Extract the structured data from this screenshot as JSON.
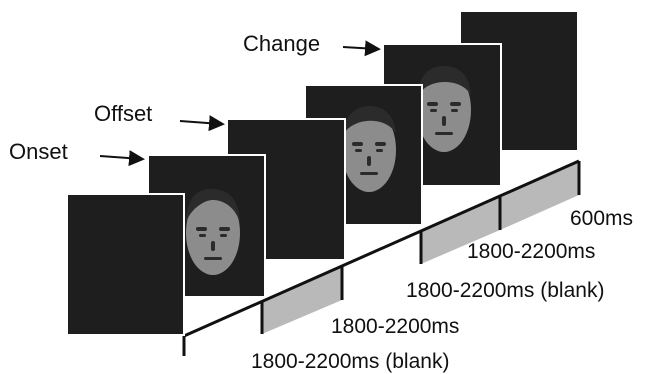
{
  "colors": {
    "screen": "#1e1e1e",
    "screen_border": "#ffffff",
    "face_skin": "#8c8c8c",
    "face_dark": "#2b2b2b",
    "shaded_interval": "#b9b9b9",
    "text": "#111111"
  },
  "event_labels": {
    "onset": "Onset",
    "offset": "Offset",
    "change": "Change"
  },
  "timeline": {
    "intervals": [
      {
        "label": "1800-2200ms (blank)",
        "shaded": false
      },
      {
        "label": "1800-2200ms",
        "shaded": true
      },
      {
        "label": "1800-2200ms (blank)",
        "shaded": false
      },
      {
        "label": "1800-2200ms",
        "shaded": true
      },
      {
        "label": "600ms",
        "shaded": false
      }
    ]
  },
  "frames": [
    {
      "content": "blank"
    },
    {
      "content": "face"
    },
    {
      "content": "blank"
    },
    {
      "content": "face"
    },
    {
      "content": "face"
    },
    {
      "content": "blank"
    }
  ]
}
